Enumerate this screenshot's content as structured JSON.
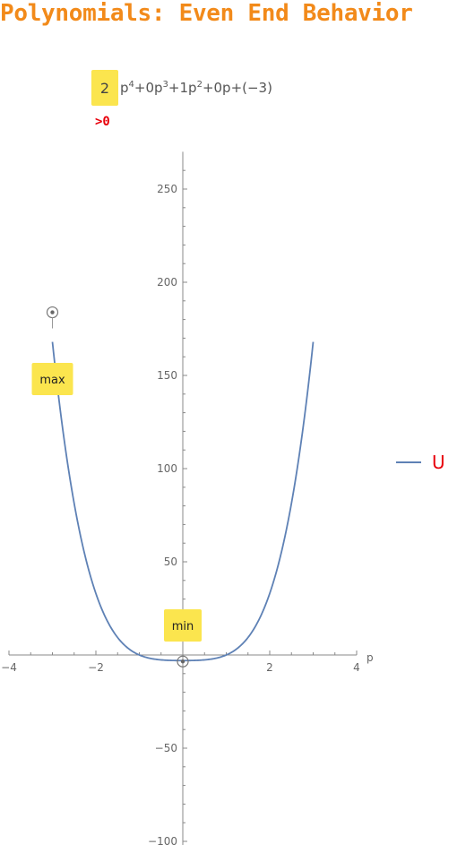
{
  "title": "Polynomials: Even End Behavior",
  "formula": {
    "leading_coefficient": "2",
    "terms": [
      {
        "text": "p",
        "sup": "4"
      },
      {
        "text": "+0p",
        "sup": "3"
      },
      {
        "text": "+1p",
        "sup": "2"
      },
      {
        "text": "+0p+(−3)",
        "sup": ""
      }
    ],
    "sign_note": ">0"
  },
  "colors": {
    "curve": "#5e81b5",
    "highlight": "#fbe54e",
    "title": "#f28a1a",
    "accent_red": "#e8000b"
  },
  "chart_data": {
    "type": "line",
    "title": "",
    "xlabel": "p",
    "ylabel": "",
    "xlim": [
      -4,
      4
    ],
    "ylim": [
      -100,
      270
    ],
    "x_ticks": [
      -4,
      -2,
      2,
      4
    ],
    "x_tick_labels": [
      "−4",
      "−2",
      "2",
      "4"
    ],
    "y_ticks": [
      -100,
      -50,
      50,
      100,
      150,
      200,
      250
    ],
    "y_tick_labels": [
      "−100",
      "−50",
      "50",
      "100",
      "150",
      "200",
      "250"
    ],
    "grid": false,
    "legend_position": "right",
    "series": [
      {
        "name": "U",
        "expression": "2p^4 + 0p^3 + 1p^2 + 0p - 3",
        "coefficients": [
          2,
          0,
          1,
          0,
          -3
        ],
        "x_range": [
          -3,
          3
        ]
      }
    ],
    "annotations": [
      {
        "label": "max",
        "x": -3,
        "y": 168
      },
      {
        "label": "min",
        "x": 0,
        "y": -3
      }
    ]
  }
}
